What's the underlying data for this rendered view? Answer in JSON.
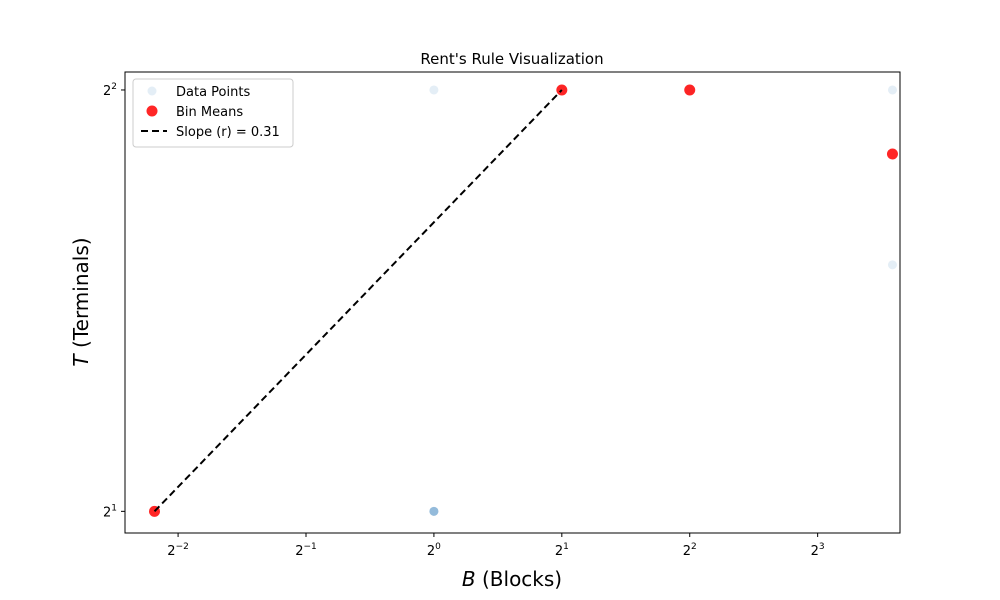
{
  "chart_data": {
    "type": "scatter",
    "title": "Rent's Rule Visualization",
    "xlabel_var": "B",
    "xlabel_rest": " (Blocks)",
    "ylabel_var": "T",
    "ylabel_rest": " (Terminals)",
    "xscale": "log2",
    "yscale": "log2",
    "xlim": [
      0.1875,
      12.5
    ],
    "ylim": [
      1.93,
      4.12
    ],
    "xticks": [
      {
        "value": 0.25,
        "base": "2",
        "exp": "−2"
      },
      {
        "value": 0.5,
        "base": "2",
        "exp": "−1"
      },
      {
        "value": 1,
        "base": "2",
        "exp": "0"
      },
      {
        "value": 2,
        "base": "2",
        "exp": "1"
      },
      {
        "value": 4,
        "base": "2",
        "exp": "2"
      },
      {
        "value": 8,
        "base": "2",
        "exp": "3"
      }
    ],
    "yticks": [
      {
        "value": 2,
        "base": "2",
        "exp": "1"
      },
      {
        "value": 4,
        "base": "2",
        "exp": "2"
      }
    ],
    "legend_position": "upper-left",
    "series": [
      {
        "name": "Data Points",
        "kind": "scatter",
        "color": "#1f77b4",
        "opacity": 0.12,
        "points": [
          {
            "x": 1,
            "y": 4
          },
          {
            "x": 1,
            "y": 2
          },
          {
            "x": 1,
            "y": 2
          },
          {
            "x": 1,
            "y": 2
          },
          {
            "x": 1,
            "y": 2
          },
          {
            "x": 1,
            "y": 2
          },
          {
            "x": 2,
            "y": 4
          },
          {
            "x": 4,
            "y": 4
          },
          {
            "x": 12,
            "y": 4
          },
          {
            "x": 12,
            "y": 3
          }
        ]
      },
      {
        "name": "Bin Means",
        "kind": "scatter",
        "color": "#ff0000",
        "opacity": 0.85,
        "points": [
          {
            "x": 0.22,
            "y": 2
          },
          {
            "x": 2,
            "y": 4
          },
          {
            "x": 4,
            "y": 4
          },
          {
            "x": 12,
            "y": 3.6
          }
        ]
      },
      {
        "name": "Slope (r) = 0.31",
        "kind": "line",
        "color": "#000000",
        "dash": "dashed",
        "points": [
          {
            "x": 0.22,
            "y": 2
          },
          {
            "x": 2,
            "y": 4
          }
        ]
      }
    ]
  }
}
